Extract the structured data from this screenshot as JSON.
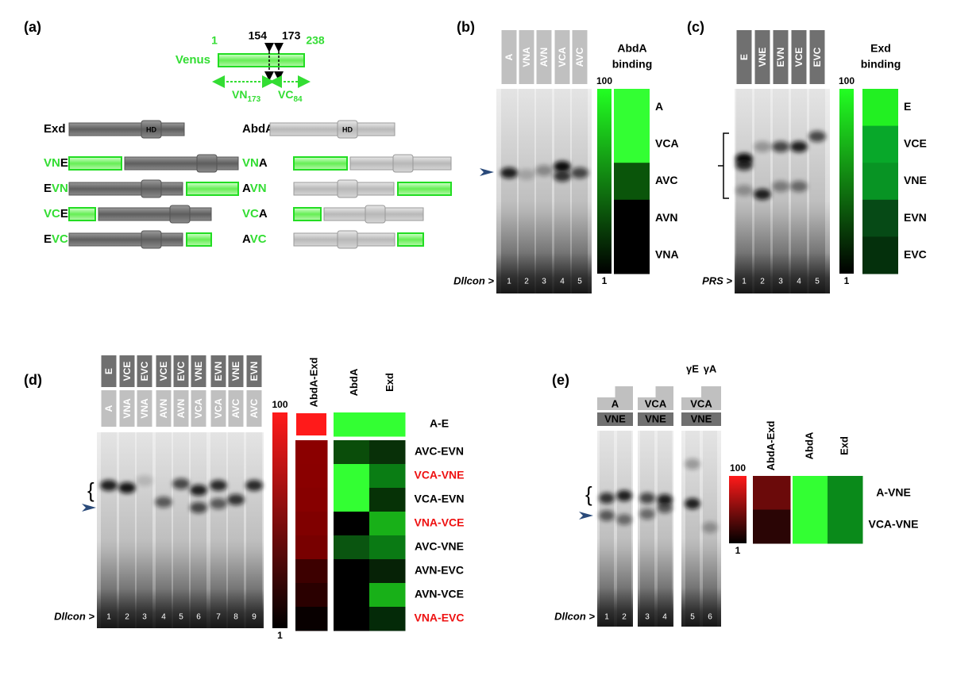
{
  "a": {
    "label": "(a)",
    "venus": {
      "name": "Venus",
      "start": "1",
      "end": "238",
      "split_left": "154",
      "split_right": "173",
      "vn": "VN",
      "vn_size": "173",
      "vc": "VC",
      "vc_size": "84"
    },
    "domain": "HD",
    "exd": {
      "name": "Exd",
      "constructs": [
        {
          "parts": [
            {
              "text": "VN",
              "color": "#33dd33"
            },
            {
              "text": "E",
              "color": "#000000"
            }
          ]
        },
        {
          "parts": [
            {
              "text": "E",
              "color": "#000000"
            },
            {
              "text": "VN",
              "color": "#33dd33"
            }
          ]
        },
        {
          "parts": [
            {
              "text": "VC",
              "color": "#33dd33"
            },
            {
              "text": "E",
              "color": "#000000"
            }
          ]
        },
        {
          "parts": [
            {
              "text": "E",
              "color": "#000000"
            },
            {
              "text": "VC",
              "color": "#33dd33"
            }
          ]
        }
      ]
    },
    "abda": {
      "name": "AbdA",
      "constructs": [
        {
          "parts": [
            {
              "text": "VN",
              "color": "#33dd33"
            },
            {
              "text": "A",
              "color": "#000000"
            }
          ]
        },
        {
          "parts": [
            {
              "text": "A",
              "color": "#000000"
            },
            {
              "text": "VN",
              "color": "#33dd33"
            }
          ]
        },
        {
          "parts": [
            {
              "text": "VC",
              "color": "#33dd33"
            },
            {
              "text": "A",
              "color": "#000000"
            }
          ]
        },
        {
          "parts": [
            {
              "text": "A",
              "color": "#000000"
            },
            {
              "text": "VC",
              "color": "#33dd33"
            }
          ]
        }
      ]
    }
  },
  "b": {
    "label": "(b)",
    "lanes": [
      "A",
      "VNA",
      "AVN",
      "VCA",
      "AVC"
    ],
    "lane_numbers": [
      1,
      2,
      3,
      4,
      5
    ],
    "probe": "Dllcon >",
    "scale_max": 100,
    "scale_min": 1,
    "title": [
      "AbdA",
      "binding"
    ],
    "heatmap": [
      {
        "label": "A",
        "color": "#33ff33"
      },
      {
        "label": "VCA",
        "color": "#33ff33"
      },
      {
        "label": "AVC",
        "color": "#0a550a"
      },
      {
        "label": "AVN",
        "color": "#000000"
      },
      {
        "label": "VNA",
        "color": "#000000"
      }
    ]
  },
  "c": {
    "label": "(c)",
    "lanes": [
      "E",
      "VNE",
      "EVN",
      "VCE",
      "EVC"
    ],
    "lane_numbers": [
      1,
      2,
      3,
      4,
      5
    ],
    "probe": "PRS >",
    "scale_max": 100,
    "scale_min": 1,
    "title": [
      "Exd",
      "binding"
    ],
    "heatmap": [
      {
        "label": "E",
        "color": "#22f022"
      },
      {
        "label": "VCE",
        "color": "#08a82a"
      },
      {
        "label": "VNE",
        "color": "#089424"
      },
      {
        "label": "EVN",
        "color": "#064a16"
      },
      {
        "label": "EVC",
        "color": "#04300c"
      }
    ]
  },
  "d": {
    "label": "(d)",
    "top_lanes": [
      "E",
      "VCE",
      "EVC",
      "VCE",
      "EVC",
      "VNE",
      "EVN",
      "VNE",
      "EVN"
    ],
    "bottom_lanes": [
      "A",
      "VNA",
      "VNA",
      "AVN",
      "AVN",
      "VCA",
      "VCA",
      "AVC",
      "AVC"
    ],
    "lane_numbers": [
      1,
      2,
      3,
      4,
      5,
      6,
      7,
      8,
      9
    ],
    "probe": "Dllcon >",
    "scale_max": 100,
    "scale_min": 1,
    "columns": [
      "AbdA-Exd",
      "AbdA",
      "Exd"
    ],
    "rows": [
      {
        "label": "A-E",
        "label_color": "#000000",
        "colors": [
          "#ff1a1a",
          "#33ff33",
          "#33ff33"
        ]
      },
      {
        "label": "AVC-EVN",
        "label_color": "#000000",
        "colors": [
          "#8b0000",
          "#0a4d0a",
          "#083008"
        ]
      },
      {
        "label": "VCA-VNE",
        "label_color": "#ee1111",
        "colors": [
          "#8a0000",
          "#33ff33",
          "#0a7d14"
        ]
      },
      {
        "label": "VCA-EVN",
        "label_color": "#000000",
        "colors": [
          "#870000",
          "#33ff33",
          "#063206"
        ]
      },
      {
        "label": "VNA-VCE",
        "label_color": "#ee1111",
        "colors": [
          "#800000",
          "#000000",
          "#18b018"
        ]
      },
      {
        "label": "AVC-VNE",
        "label_color": "#000000",
        "colors": [
          "#780000",
          "#0a5510",
          "#0a7a14"
        ]
      },
      {
        "label": "AVN-EVC",
        "label_color": "#000000",
        "colors": [
          "#3d0000",
          "#000000",
          "#062206"
        ]
      },
      {
        "label": "AVN-VCE",
        "label_color": "#000000",
        "colors": [
          "#2a0000",
          "#000000",
          "#18b018"
        ]
      },
      {
        "label": "VNA-EVC",
        "label_color": "#ee1111",
        "colors": [
          "#080000",
          "#000000",
          "#042a08"
        ]
      }
    ]
  },
  "e": {
    "label": "(e)",
    "groups": [
      {
        "top": "A",
        "bottom": "VNE",
        "lane_numbers": [
          1,
          2
        ]
      },
      {
        "top": "VCA",
        "bottom": "VNE",
        "lane_numbers": [
          3,
          4
        ]
      },
      {
        "top": "VCA",
        "bottom": "VNE",
        "lane_numbers": [
          5,
          6
        ],
        "ligands": [
          "γE",
          "γA"
        ]
      }
    ],
    "probe": "Dllcon >",
    "scale_max": 100,
    "scale_min": 1,
    "columns": [
      "AbdA-Exd",
      "AbdA",
      "Exd"
    ],
    "rows": [
      {
        "label": "A-VNE",
        "colors": [
          "#6b0a0a",
          "#33ff33",
          "#0a8a1a"
        ]
      },
      {
        "label": "VCA-VNE",
        "colors": [
          "#2a0505",
          "#33ff33",
          "#0a8a1a"
        ]
      }
    ]
  }
}
